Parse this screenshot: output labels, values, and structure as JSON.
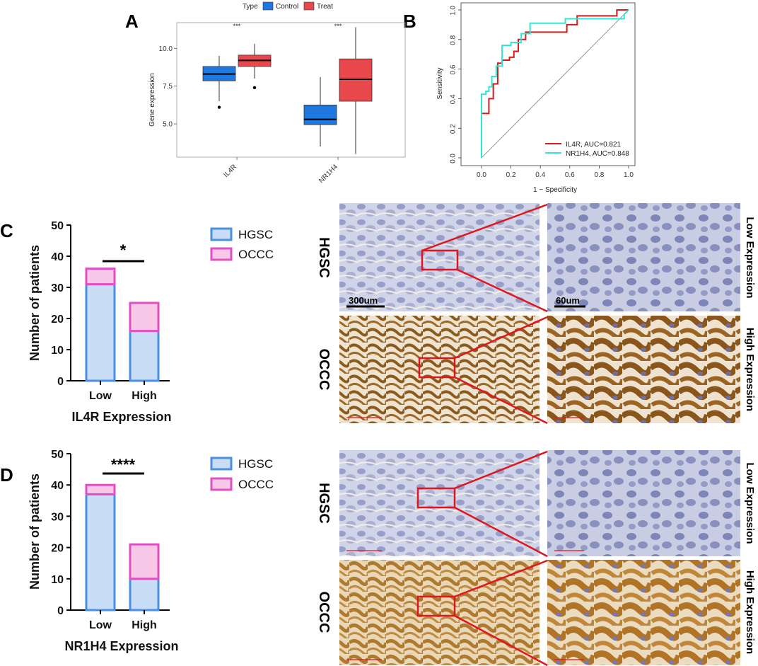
{
  "panels": {
    "A": "A",
    "B": "B",
    "C": "C",
    "D": "D"
  },
  "chart_data": [
    {
      "panel": "A",
      "type": "box",
      "legend_title": "Type",
      "legend": [
        "Control",
        "Treat"
      ],
      "colors": {
        "Control": "#1f78e0",
        "Treat": "#e8474c"
      },
      "categories": [
        "IL4R",
        "NR1H4"
      ],
      "ylabel": "Gene expression",
      "yticks": [
        "5.0",
        "7.5",
        "10.0"
      ],
      "ytick_values": [
        5.0,
        7.5,
        10.0
      ],
      "ylim": [
        2.8,
        11.7
      ],
      "significance": [
        "***",
        "***"
      ],
      "series": [
        {
          "name": "Control",
          "boxes": [
            {
              "category": "IL4R",
              "min": 6.5,
              "q1": 7.85,
              "median": 8.3,
              "q3": 8.8,
              "max": 9.5,
              "outliers": [
                6.1
              ]
            },
            {
              "category": "NR1H4",
              "min": 3.5,
              "q1": 4.95,
              "median": 5.3,
              "q3": 6.25,
              "max": 8.1,
              "outliers": []
            }
          ]
        },
        {
          "name": "Treat",
          "boxes": [
            {
              "category": "IL4R",
              "min": 8.0,
              "q1": 8.8,
              "median": 9.2,
              "q3": 9.55,
              "max": 10.3,
              "outliers": [
                7.4
              ]
            },
            {
              "category": "NR1H4",
              "min": 3.0,
              "q1": 6.5,
              "median": 7.95,
              "q3": 9.3,
              "max": 11.4,
              "outliers": []
            }
          ]
        }
      ]
    },
    {
      "panel": "B",
      "type": "line",
      "xlabel": "1 − Specificity",
      "ylabel": "Sensitivity",
      "xlim": [
        0,
        1
      ],
      "ylim": [
        0,
        1
      ],
      "xticks": [
        "0.0",
        "0.2",
        "0.4",
        "0.6",
        "0.8",
        "1.0"
      ],
      "yticks": [
        "0.0",
        "0.2",
        "0.4",
        "0.6",
        "0.8",
        "1.0"
      ],
      "legend": [
        "IL4R, AUC=0.821",
        "NR1H4, AUC=0.848"
      ],
      "series": [
        {
          "name": "IL4R, AUC=0.821",
          "color": "#d7191c",
          "x": [
            0,
            0,
            0.05,
            0.05,
            0.08,
            0.08,
            0.11,
            0.11,
            0.14,
            0.14,
            0.19,
            0.19,
            0.22,
            0.22,
            0.25,
            0.25,
            0.3,
            0.3,
            0.58,
            0.58,
            0.65,
            0.65,
            0.92,
            0.92,
            1.0
          ],
          "y": [
            0,
            0.3,
            0.3,
            0.4,
            0.4,
            0.5,
            0.5,
            0.64,
            0.64,
            0.66,
            0.66,
            0.68,
            0.68,
            0.72,
            0.72,
            0.8,
            0.8,
            0.85,
            0.85,
            0.9,
            0.9,
            0.96,
            0.96,
            1.0,
            1.0
          ]
        },
        {
          "name": "NR1H4, AUC=0.848",
          "color": "#2ee6d6",
          "x": [
            0,
            0,
            0.03,
            0.03,
            0.05,
            0.05,
            0.07,
            0.07,
            0.1,
            0.1,
            0.14,
            0.14,
            0.2,
            0.2,
            0.27,
            0.27,
            0.33,
            0.33,
            0.57,
            0.57,
            0.97,
            0.97,
            1.0
          ],
          "y": [
            0,
            0.43,
            0.43,
            0.45,
            0.45,
            0.48,
            0.48,
            0.55,
            0.55,
            0.62,
            0.62,
            0.76,
            0.76,
            0.78,
            0.78,
            0.84,
            0.84,
            0.91,
            0.91,
            0.94,
            0.94,
            0.97,
            1.0
          ]
        }
      ]
    },
    {
      "panel": "C",
      "type": "bar",
      "stacked": true,
      "categories": [
        "Low",
        "High"
      ],
      "xlabel": "IL4R Expression",
      "ylabel": "Number of patients",
      "ylim": [
        0,
        50
      ],
      "yticks": [
        "0",
        "10",
        "20",
        "30",
        "40",
        "50"
      ],
      "significance": "*",
      "legend": [
        "HGSC",
        "OCCC"
      ],
      "series": [
        {
          "name": "HGSC",
          "values": [
            31,
            16
          ],
          "fill": "#c9ddf6",
          "stroke": "#4a90e2"
        },
        {
          "name": "OCCC",
          "values": [
            5,
            9
          ],
          "fill": "#f7c8e8",
          "stroke": "#e14fc2"
        }
      ]
    },
    {
      "panel": "D",
      "type": "bar",
      "stacked": true,
      "categories": [
        "Low",
        "High"
      ],
      "xlabel": "NR1H4 Expression",
      "ylabel": "Number of patients",
      "ylim": [
        0,
        50
      ],
      "yticks": [
        "0",
        "10",
        "20",
        "30",
        "40",
        "50"
      ],
      "significance": "****",
      "legend": [
        "HGSC",
        "OCCC"
      ],
      "series": [
        {
          "name": "HGSC",
          "values": [
            37,
            10
          ],
          "fill": "#c9ddf6",
          "stroke": "#4a90e2"
        },
        {
          "name": "OCCC",
          "values": [
            3,
            11
          ],
          "fill": "#f7c8e8",
          "stroke": "#e14fc2"
        }
      ]
    }
  ],
  "micrographs": {
    "row_labels": [
      "HGSC",
      "OCCC",
      "HGSC",
      "OCCC"
    ],
    "expression_labels": [
      "Low Expression",
      "High Expression",
      "Low Expression",
      "High Expression"
    ],
    "scale_bars": [
      "300um",
      "60um"
    ],
    "colors": {
      "hgsc_bg": "#c9cfe4",
      "hgsc_stain": "#7f86b8",
      "occc_bg": "#e2c9a6",
      "occc_stain": "#8b5a1f",
      "zoom_box": "#e0161e"
    }
  }
}
